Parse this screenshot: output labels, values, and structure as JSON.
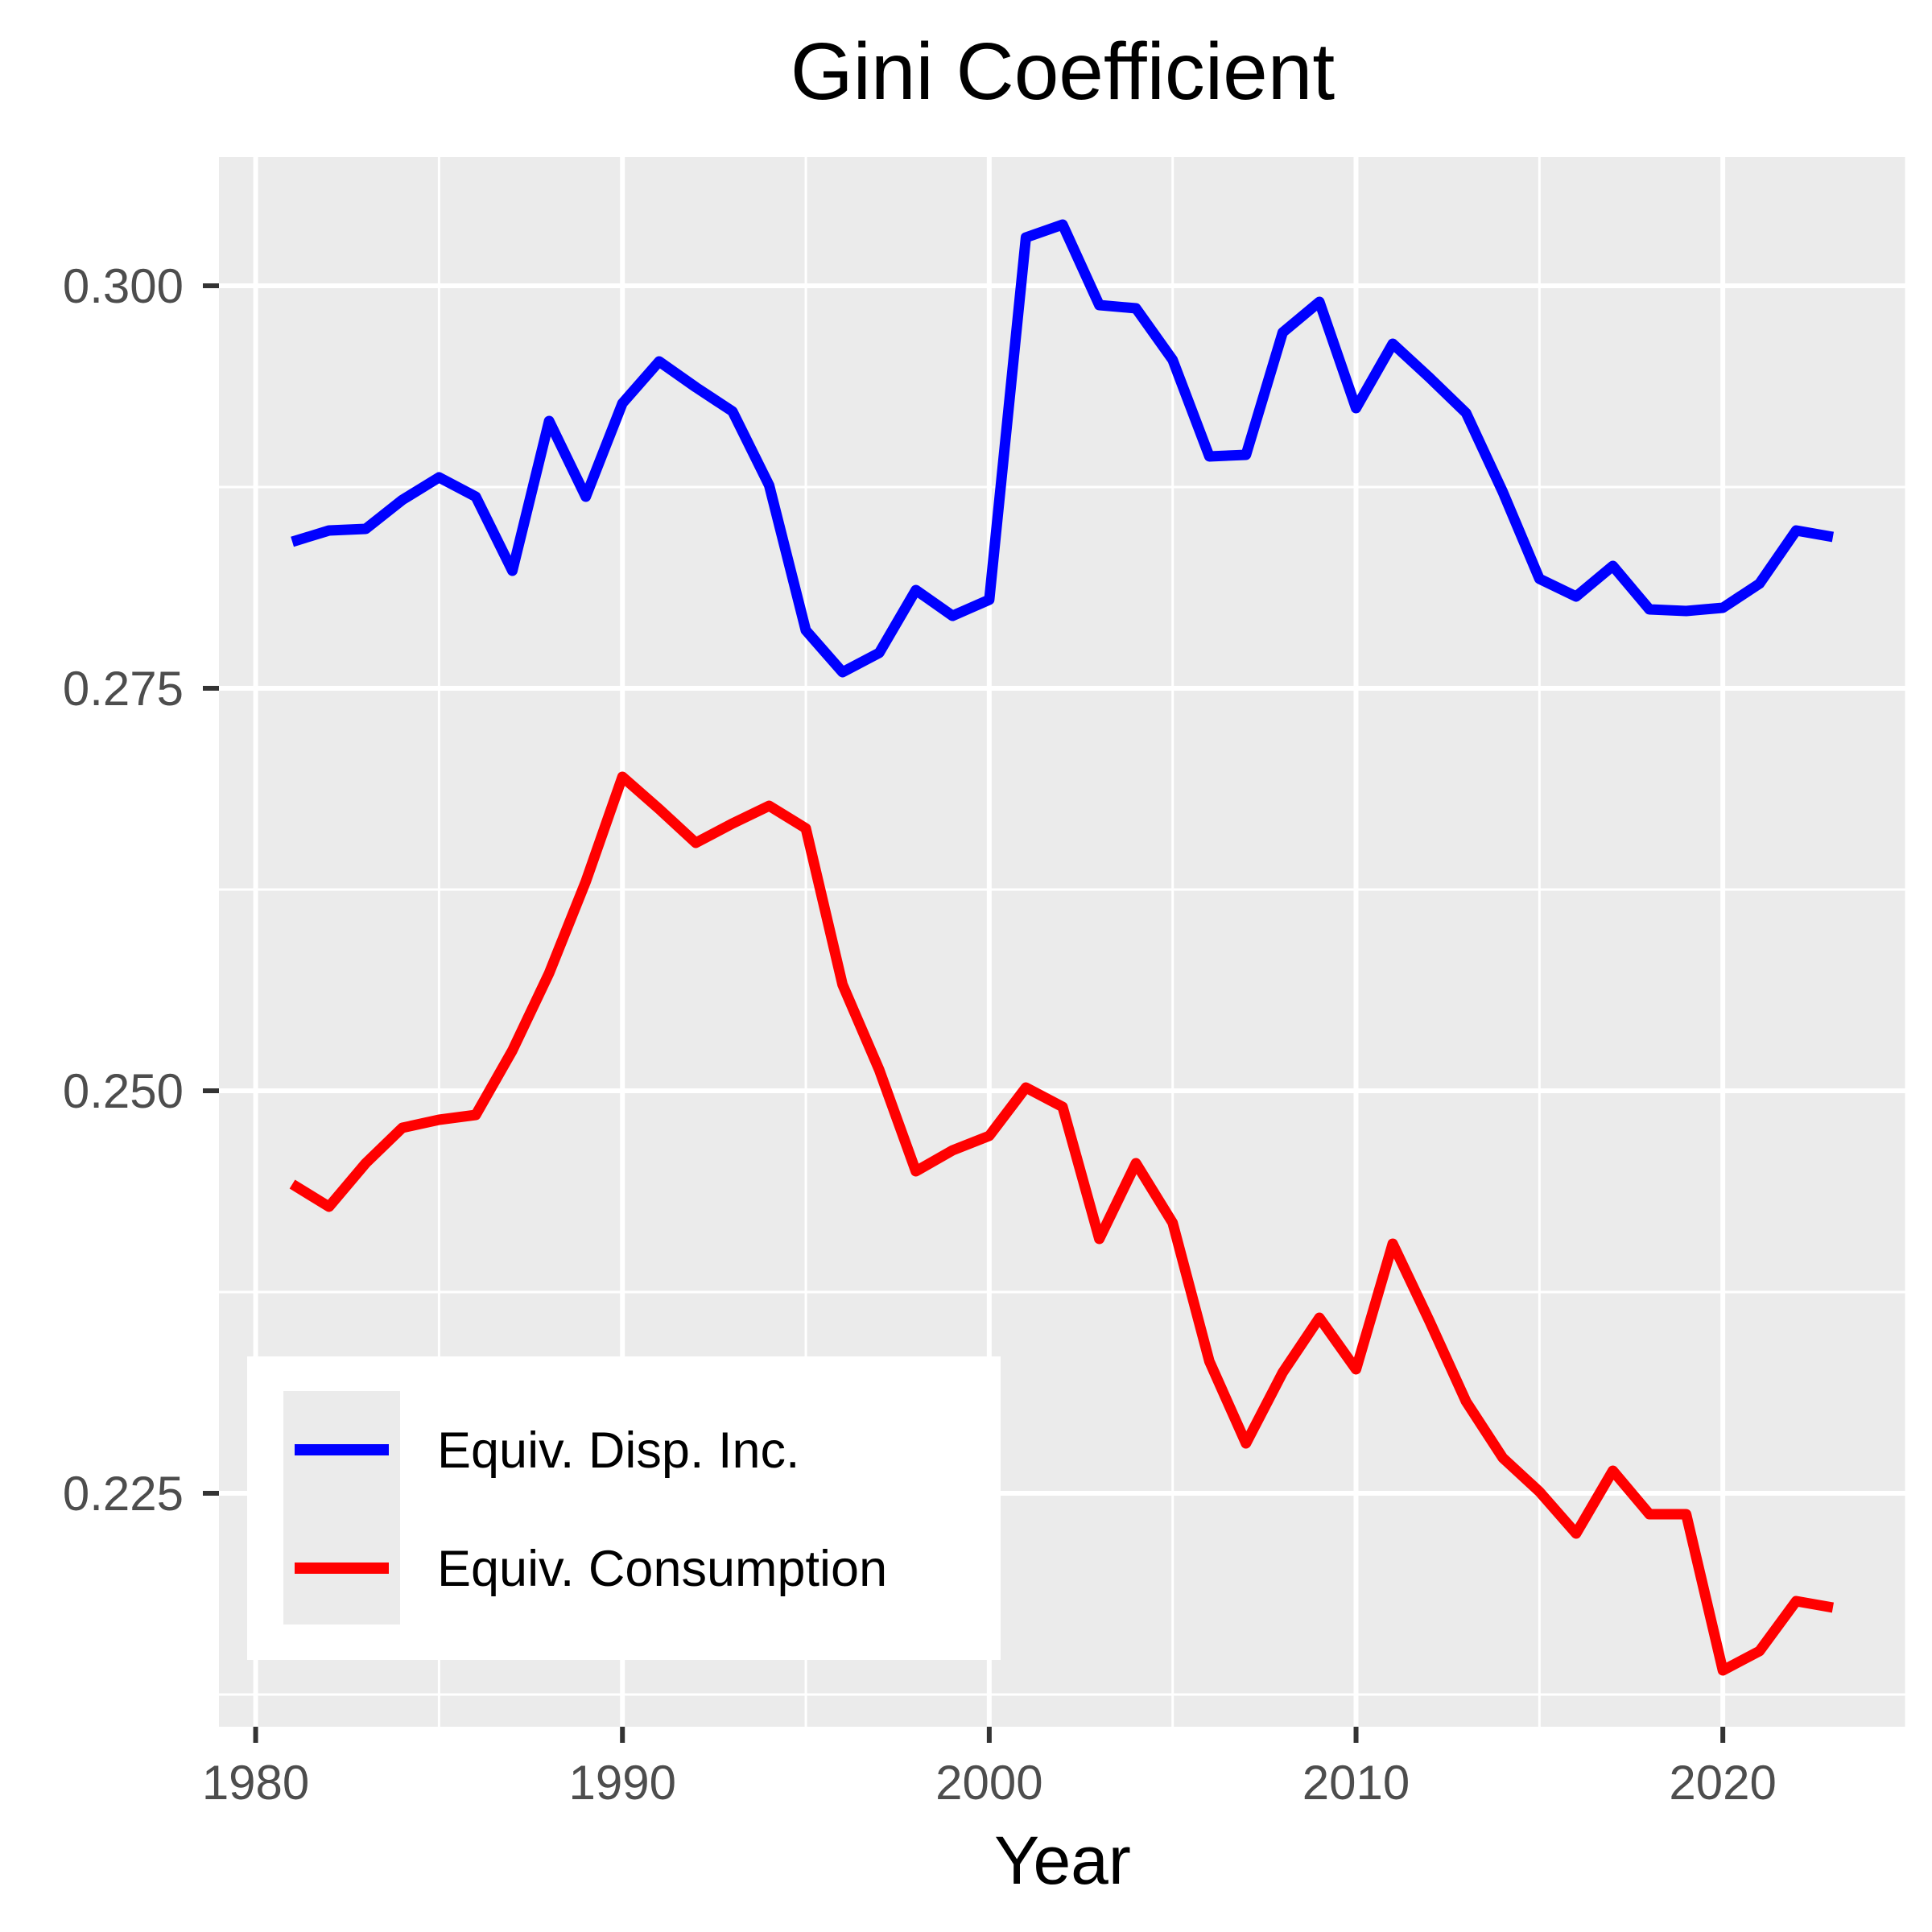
{
  "chart_data": {
    "type": "line",
    "title": "Gini Coefficient",
    "xlabel": "Year",
    "ylabel": "",
    "xlim": [
      1979,
      2025
    ],
    "ylim": [
      0.2105,
      0.308
    ],
    "x_ticks": [
      1980,
      1990,
      2000,
      2010,
      2020
    ],
    "x_tick_labels": [
      "1980",
      "1990",
      "2000",
      "2010",
      "2020"
    ],
    "x_minor_ticks": [
      1985,
      1995,
      2005,
      2015,
      2025
    ],
    "y_ticks": [
      0.225,
      0.25,
      0.275,
      0.3
    ],
    "y_tick_labels": [
      "0.225",
      "0.250",
      "0.275",
      "0.300"
    ],
    "y_minor_ticks": [
      0.2125,
      0.2375,
      0.2625,
      0.2875
    ],
    "grid": true,
    "legend_position": "bottom-left",
    "x": [
      1981,
      1982,
      1983,
      1984,
      1985,
      1986,
      1987,
      1988,
      1989,
      1990,
      1991,
      1992,
      1993,
      1994,
      1995,
      1996,
      1997,
      1998,
      1999,
      2000,
      2001,
      2002,
      2003,
      2004,
      2005,
      2006,
      2007,
      2008,
      2009,
      2010,
      2011,
      2012,
      2013,
      2014,
      2015,
      2016,
      2017,
      2018,
      2019,
      2020,
      2021,
      2022,
      2023
    ],
    "series": [
      {
        "name": "Equiv. Disp. Inc.",
        "color": "#0000ff",
        "values": [
          0.2841,
          0.2848,
          0.2849,
          0.2867,
          0.2881,
          0.2869,
          0.2823,
          0.2916,
          0.2869,
          0.2927,
          0.2953,
          0.2937,
          0.2922,
          0.2876,
          0.2786,
          0.276,
          0.2772,
          0.2811,
          0.2795,
          0.2805,
          0.303,
          0.3038,
          0.2988,
          0.2986,
          0.2954,
          0.2894,
          0.2895,
          0.2971,
          0.299,
          0.2924,
          0.2964,
          0.2943,
          0.2921,
          0.2872,
          0.2818,
          0.2807,
          0.2826,
          0.2799,
          0.2798,
          0.28,
          0.2815,
          0.2848,
          0.2844
        ]
      },
      {
        "name": "Equiv. Consumption",
        "color": "#ff0000",
        "values": [
          0.2442,
          0.2428,
          0.2455,
          0.2477,
          0.2482,
          0.2485,
          0.2525,
          0.2573,
          0.263,
          0.2695,
          0.2675,
          0.2654,
          0.2666,
          0.2677,
          0.2663,
          0.2566,
          0.2513,
          0.245,
          0.2463,
          0.2472,
          0.2502,
          0.249,
          0.2408,
          0.2455,
          0.2418,
          0.2332,
          0.2281,
          0.2325,
          0.2359,
          0.2327,
          0.2405,
          0.2357,
          0.2307,
          0.2272,
          0.2251,
          0.2225,
          0.2264,
          0.2237,
          0.2237,
          0.214,
          0.2152,
          0.2183,
          0.2179
        ]
      }
    ]
  },
  "colors": {
    "panel_background": "#ebebeb",
    "grid": "#ffffff",
    "tick_text": "#4d4d4d",
    "tick_mark": "#333333"
  }
}
